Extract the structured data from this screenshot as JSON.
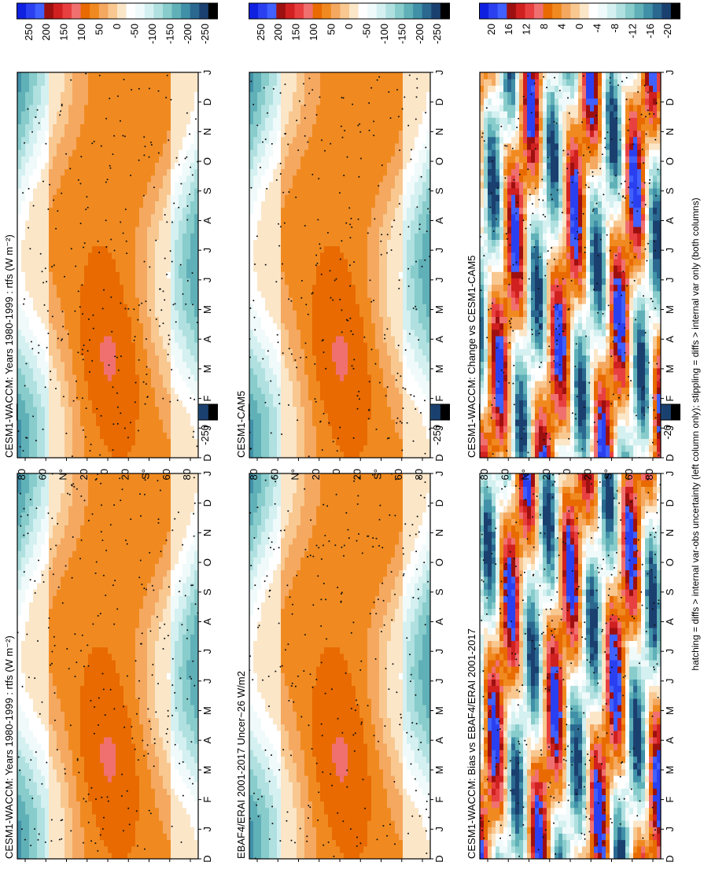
{
  "figure": {
    "footnote": "hatching = diffs > internal var-obs uncertainty (left column only); stippling = diffs > internal var only (both columns)"
  },
  "chart_data": [
    {
      "type": "heatmap",
      "title": "CESM1-WACCM: Years 1980-1999 : rtfs (W m⁻²)",
      "x_ticks": [
        "D",
        "J",
        "F",
        "M",
        "A",
        "M",
        "J",
        "J",
        "A",
        "S",
        "O",
        "N",
        "D",
        "J"
      ],
      "y_ticks": [
        "80",
        "60",
        "N°",
        "20",
        "0",
        "20",
        "S°",
        "60",
        "80"
      ],
      "colorbar_ticks": [
        "250",
        "200",
        "150",
        "100",
        "50",
        "0",
        "-50",
        "-100",
        "-150",
        "-200",
        "-250"
      ],
      "colorbar_colors": [
        "#1020e0",
        "#2a40f0",
        "#4060ff",
        "#9e1010",
        "#d02020",
        "#e84040",
        "#f07070",
        "#e86a00",
        "#f08a20",
        "#f5a860",
        "#f8c890",
        "#fbe6c8",
        "#ffffff",
        "#f0fafa",
        "#d4f0f0",
        "#b0e0e0",
        "#88cccc",
        "#60b0b8",
        "#4090a8",
        "#2a6890",
        "#1a4070",
        "#000000"
      ]
    },
    {
      "type": "heatmap",
      "title": "CESM1-WACCM: Years 1980-1999 : rtfs (W m⁻²)",
      "x_ticks": [
        "D",
        "J",
        "F",
        "M",
        "A",
        "M",
        "J",
        "J",
        "A",
        "S",
        "O",
        "N",
        "D",
        "J"
      ],
      "y_ticks": [
        "80",
        "60",
        "N°",
        "20",
        "0",
        "20",
        "S°",
        "60",
        "80"
      ],
      "colorbar_ticks": [
        "250",
        "200",
        "150",
        "100",
        "50",
        "0",
        "-50",
        "-100",
        "-150",
        "-200",
        "-250"
      ],
      "colorbar_colors": [
        "#1020e0",
        "#2a40f0",
        "#4060ff",
        "#9e1010",
        "#d02020",
        "#e84040",
        "#f07070",
        "#e86a00",
        "#f08a20",
        "#f5a860",
        "#f8c890",
        "#fbe6c8",
        "#ffffff",
        "#f0fafa",
        "#d4f0f0",
        "#b0e0e0",
        "#88cccc",
        "#60b0b8",
        "#4090a8",
        "#2a6890",
        "#1a4070",
        "#000000"
      ]
    },
    {
      "type": "heatmap",
      "title": "EBAF4/ERAI 2001-2017 Uncer~26 W/m2",
      "x_ticks": [
        "D",
        "J",
        "F",
        "M",
        "A",
        "M",
        "J",
        "J",
        "A",
        "S",
        "O",
        "N",
        "D",
        "J"
      ],
      "y_ticks": [
        "80",
        "60",
        "N°",
        "20",
        "0",
        "20",
        "S°",
        "60",
        "80"
      ],
      "colorbar_ticks": [
        "250",
        "200",
        "150",
        "100",
        "50",
        "0",
        "-50",
        "-100",
        "-150",
        "-200",
        "-250"
      ],
      "colorbar_colors": [
        "#1020e0",
        "#2a40f0",
        "#4060ff",
        "#9e1010",
        "#d02020",
        "#e84040",
        "#f07070",
        "#e86a00",
        "#f08a20",
        "#f5a860",
        "#f8c890",
        "#fbe6c8",
        "#ffffff",
        "#f0fafa",
        "#d4f0f0",
        "#b0e0e0",
        "#88cccc",
        "#60b0b8",
        "#4090a8",
        "#2a6890",
        "#1a4070",
        "#000000"
      ]
    },
    {
      "type": "heatmap",
      "title": "CESM1-CAM5",
      "x_ticks": [
        "D",
        "J",
        "F",
        "M",
        "A",
        "M",
        "J",
        "J",
        "A",
        "S",
        "O",
        "N",
        "D",
        "J"
      ],
      "y_ticks": [
        "80",
        "60",
        "N°",
        "20",
        "0",
        "20",
        "S°",
        "60",
        "80"
      ],
      "colorbar_ticks": [
        "250",
        "200",
        "150",
        "100",
        "50",
        "0",
        "-50",
        "-100",
        "-150",
        "-200",
        "-250"
      ],
      "colorbar_colors": [
        "#1020e0",
        "#2a40f0",
        "#4060ff",
        "#9e1010",
        "#d02020",
        "#e84040",
        "#f07070",
        "#e86a00",
        "#f08a20",
        "#f5a860",
        "#f8c890",
        "#fbe6c8",
        "#ffffff",
        "#f0fafa",
        "#d4f0f0",
        "#b0e0e0",
        "#88cccc",
        "#60b0b8",
        "#4090a8",
        "#2a6890",
        "#1a4070",
        "#000000"
      ]
    },
    {
      "type": "heatmap",
      "title": "CESM1-WACCM: Bias vs EBAF4/ERAI 2001-2017",
      "x_ticks": [
        "D",
        "J",
        "F",
        "M",
        "A",
        "M",
        "J",
        "J",
        "A",
        "S",
        "O",
        "N",
        "D",
        "J"
      ],
      "y_ticks": [
        "80",
        "60",
        "N°",
        "20",
        "0",
        "20",
        "S°",
        "60",
        "80"
      ],
      "colorbar_ticks": [
        "20",
        "16",
        "12",
        "8",
        "4",
        "0",
        "-4",
        "-8",
        "-12",
        "-16",
        "-20"
      ],
      "colorbar_colors": [
        "#1020e0",
        "#2a40f0",
        "#4060ff",
        "#9e1010",
        "#d02020",
        "#e84040",
        "#f07070",
        "#e86a00",
        "#f08a20",
        "#f5a860",
        "#f8c890",
        "#fbe6c8",
        "#ffffff",
        "#f0fafa",
        "#d4f0f0",
        "#b0e0e0",
        "#88cccc",
        "#60b0b8",
        "#4090a8",
        "#2a6890",
        "#1a4070",
        "#000000"
      ]
    },
    {
      "type": "heatmap",
      "title": "CESM1-WACCM: Change vs CESM1-CAM5",
      "x_ticks": [
        "D",
        "J",
        "F",
        "M",
        "A",
        "M",
        "J",
        "J",
        "A",
        "S",
        "O",
        "N",
        "D",
        "J"
      ],
      "y_ticks": [
        "80",
        "60",
        "N°",
        "20",
        "0",
        "20",
        "S°",
        "60",
        "80"
      ],
      "colorbar_ticks": [
        "20",
        "16",
        "12",
        "8",
        "4",
        "0",
        "-4",
        "-8",
        "-12",
        "-16",
        "-20"
      ],
      "colorbar_colors": [
        "#1020e0",
        "#2a40f0",
        "#4060ff",
        "#9e1010",
        "#d02020",
        "#e84040",
        "#f07070",
        "#e86a00",
        "#f08a20",
        "#f5a860",
        "#f8c890",
        "#fbe6c8",
        "#ffffff",
        "#f0fafa",
        "#d4f0f0",
        "#b0e0e0",
        "#88cccc",
        "#60b0b8",
        "#4090a8",
        "#2a6890",
        "#1a4070",
        "#000000"
      ]
    }
  ]
}
